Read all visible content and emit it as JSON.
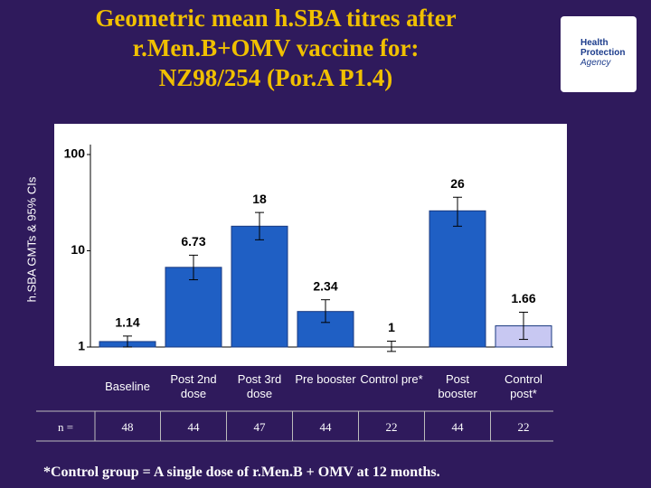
{
  "chart_data": {
    "type": "bar",
    "title": "Geometric mean h.SBA titres after\nr.Men.B+OMV vaccine for:\nNZ98/254 (Por.A P1.4)",
    "y_label": "h.SBA GMTs & 95% CIs",
    "categories": [
      "Baseline",
      "Post 2nd dose",
      "Post 3rd dose",
      "Pre booster",
      "Control pre*",
      "Post booster",
      "Control post*"
    ],
    "values": [
      1.14,
      6.73,
      18,
      2.34,
      1,
      26,
      1.66
    ],
    "lower": [
      1,
      5,
      13,
      1.8,
      0.9,
      18,
      1.2
    ],
    "upper": [
      1.3,
      9,
      25,
      3.1,
      1.15,
      36,
      2.3
    ],
    "colors": [
      "#1f5fc4",
      "#1f5fc4",
      "#1f5fc4",
      "#1f5fc4",
      "#1f5fc4",
      "#1f5fc4",
      "#c8c8f2"
    ],
    "ylim": [
      1,
      100
    ],
    "yticks": [
      1,
      10,
      100
    ],
    "log_scale": true,
    "grid": false
  },
  "logo_text": [
    "Health",
    "Protection",
    "Agency"
  ],
  "table": {
    "row_label": "n =",
    "n": [
      48,
      44,
      47,
      44,
      22,
      44,
      22
    ]
  },
  "footnote": "*Control group = A single dose of r.Men.B + OMV at 12 months."
}
